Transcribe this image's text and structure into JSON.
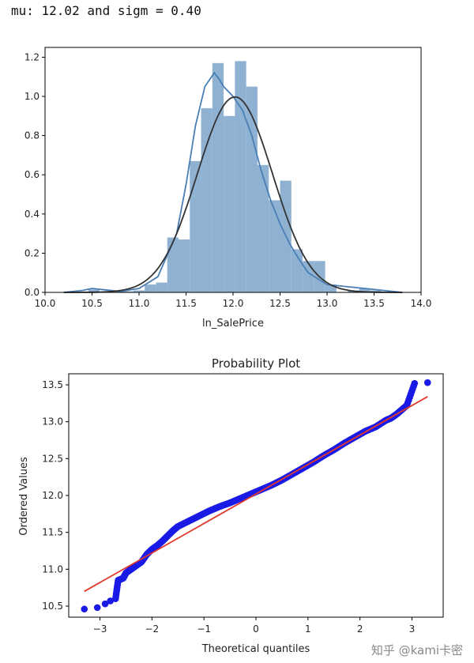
{
  "console_text": "mu: 12.02 and sigm = 0.40",
  "watermark": "知乎 @kami卡密",
  "colors": {
    "hist": "#8fb2d2",
    "kde": "#4a7fb5",
    "normfit": "#333333",
    "points": "#1a1ae6",
    "fit_line": "#e0392b"
  },
  "chart_data": [
    {
      "type": "bar",
      "kind": "histogram-with-kde",
      "title": "",
      "xlabel": "ln_SalePrice",
      "ylabel": "",
      "xlim": [
        10.0,
        14.0
      ],
      "ylim": [
        0.0,
        1.25
      ],
      "xticks": [
        "10.0",
        "10.5",
        "11.0",
        "11.5",
        "12.0",
        "12.5",
        "13.0",
        "13.5",
        "14.0"
      ],
      "yticks": [
        "0.0",
        "0.2",
        "0.4",
        "0.6",
        "0.8",
        "1.0",
        "1.2"
      ],
      "bins": [
        {
          "x0": 10.46,
          "x1": 10.58,
          "v": 0.015
        },
        {
          "x0": 10.58,
          "x1": 10.7,
          "v": 0.0
        },
        {
          "x0": 10.7,
          "x1": 10.82,
          "v": 0.0
        },
        {
          "x0": 10.82,
          "x1": 10.94,
          "v": 0.005
        },
        {
          "x0": 10.94,
          "x1": 11.06,
          "v": 0.01
        },
        {
          "x0": 11.06,
          "x1": 11.18,
          "v": 0.04
        },
        {
          "x0": 11.18,
          "x1": 11.3,
          "v": 0.05
        },
        {
          "x0": 11.3,
          "x1": 11.42,
          "v": 0.28
        },
        {
          "x0": 11.42,
          "x1": 11.54,
          "v": 0.27
        },
        {
          "x0": 11.54,
          "x1": 11.66,
          "v": 0.67
        },
        {
          "x0": 11.66,
          "x1": 11.78,
          "v": 0.94
        },
        {
          "x0": 11.78,
          "x1": 11.9,
          "v": 1.17
        },
        {
          "x0": 11.9,
          "x1": 12.02,
          "v": 0.9
        },
        {
          "x0": 12.02,
          "x1": 12.14,
          "v": 1.18
        },
        {
          "x0": 12.14,
          "x1": 12.26,
          "v": 1.05
        },
        {
          "x0": 12.26,
          "x1": 12.38,
          "v": 0.65
        },
        {
          "x0": 12.38,
          "x1": 12.5,
          "v": 0.47
        },
        {
          "x0": 12.5,
          "x1": 12.62,
          "v": 0.57
        },
        {
          "x0": 12.62,
          "x1": 12.74,
          "v": 0.22
        },
        {
          "x0": 12.74,
          "x1": 12.86,
          "v": 0.16
        },
        {
          "x0": 12.86,
          "x1": 12.98,
          "v": 0.16
        },
        {
          "x0": 12.98,
          "x1": 13.1,
          "v": 0.04
        },
        {
          "x0": 13.1,
          "x1": 13.22,
          "v": 0.0
        },
        {
          "x0": 13.22,
          "x1": 13.34,
          "v": 0.01
        },
        {
          "x0": 13.34,
          "x1": 13.46,
          "v": 0.02
        },
        {
          "x0": 13.46,
          "x1": 13.58,
          "v": 0.01
        }
      ],
      "kde": {
        "x": [
          10.2,
          10.4,
          10.5,
          10.6,
          10.8,
          11.0,
          11.2,
          11.4,
          11.5,
          11.6,
          11.7,
          11.8,
          11.85,
          11.9,
          12.0,
          12.1,
          12.2,
          12.3,
          12.4,
          12.5,
          12.6,
          12.7,
          12.8,
          13.0,
          13.2,
          13.4,
          13.6,
          13.8
        ],
        "y": [
          0.0,
          0.01,
          0.02,
          0.015,
          0.005,
          0.02,
          0.08,
          0.3,
          0.55,
          0.85,
          1.05,
          1.12,
          1.09,
          1.05,
          1.0,
          0.93,
          0.8,
          0.62,
          0.47,
          0.35,
          0.25,
          0.17,
          0.1,
          0.04,
          0.03,
          0.02,
          0.01,
          0.0
        ]
      },
      "normal_fit": {
        "mu": 12.02,
        "sigma": 0.4,
        "x_range": [
          10.2,
          13.8
        ]
      }
    },
    {
      "type": "scatter",
      "title": "Probability Plot",
      "xlabel": "Theoretical quantiles",
      "ylabel": "Ordered Values",
      "xlim": [
        -3.6,
        3.6
      ],
      "ylim": [
        10.35,
        13.65
      ],
      "xticks": [
        "−3",
        "−2",
        "−1",
        "0",
        "1",
        "2",
        "3"
      ],
      "yticks": [
        "10.5",
        "11.0",
        "11.5",
        "12.0",
        "12.5",
        "13.0",
        "13.5"
      ],
      "fit_line": {
        "x": [
          -3.3,
          3.3
        ],
        "y": [
          10.7,
          13.34
        ]
      },
      "points": {
        "x": [
          -3.3,
          -3.05,
          -2.9,
          -2.8,
          -2.7,
          -2.65,
          -2.55,
          -2.5,
          -2.4,
          -2.3,
          -2.2,
          -2.1,
          -2.0,
          -1.9,
          -1.8,
          -1.7,
          -1.6,
          -1.5,
          -1.3,
          -1.1,
          -0.9,
          -0.7,
          -0.5,
          -0.3,
          -0.1,
          0.1,
          0.3,
          0.5,
          0.7,
          0.9,
          1.1,
          1.3,
          1.5,
          1.7,
          1.9,
          2.1,
          2.3,
          2.5,
          2.6,
          2.7,
          2.8,
          2.9,
          3.05,
          3.3
        ],
        "y": [
          10.46,
          10.48,
          10.53,
          10.57,
          10.6,
          10.85,
          10.88,
          10.95,
          11.0,
          11.05,
          11.1,
          11.2,
          11.27,
          11.32,
          11.38,
          11.45,
          11.52,
          11.58,
          11.65,
          11.72,
          11.79,
          11.85,
          11.9,
          11.96,
          12.02,
          12.08,
          12.14,
          12.21,
          12.29,
          12.37,
          12.45,
          12.54,
          12.62,
          12.71,
          12.79,
          12.87,
          12.93,
          13.02,
          13.05,
          13.1,
          13.16,
          13.22,
          13.52,
          13.53
        ]
      }
    }
  ]
}
